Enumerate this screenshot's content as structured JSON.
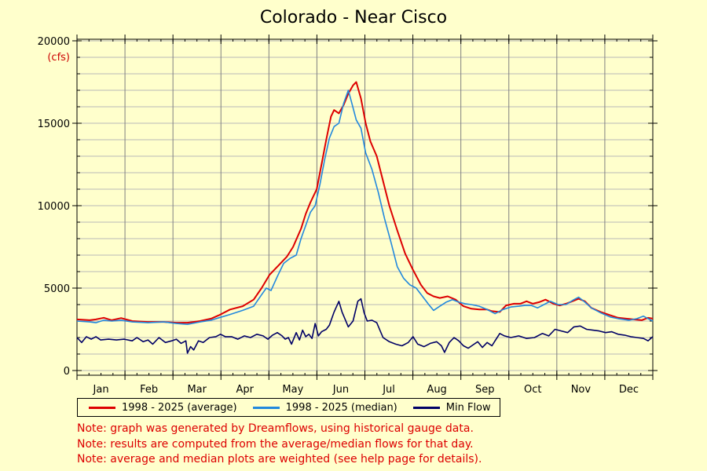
{
  "chart_data": {
    "type": "line",
    "title": "Colorado - Near Cisco",
    "ylabel_unit": "(cfs)",
    "ylim": [
      0,
      20000
    ],
    "yticks": [
      0,
      5000,
      10000,
      15000,
      20000
    ],
    "xlim": [
      0,
      365
    ],
    "months": [
      "Jan",
      "Feb",
      "Mar",
      "Apr",
      "May",
      "Jun",
      "Jul",
      "Aug",
      "Sep",
      "Oct",
      "Nov",
      "Dec"
    ],
    "grid": true,
    "legend_position": "bottom",
    "series": [
      {
        "name": "1998 - 2025 (average)",
        "color": "#dd0000",
        "points": [
          [
            0,
            3100
          ],
          [
            8,
            3050
          ],
          [
            12,
            3100
          ],
          [
            17,
            3200
          ],
          [
            22,
            3050
          ],
          [
            28,
            3180
          ],
          [
            35,
            3000
          ],
          [
            45,
            2950
          ],
          [
            55,
            2950
          ],
          [
            63,
            2900
          ],
          [
            70,
            2900
          ],
          [
            78,
            3000
          ],
          [
            85,
            3150
          ],
          [
            90,
            3350
          ],
          [
            97,
            3700
          ],
          [
            105,
            3900
          ],
          [
            112,
            4300
          ],
          [
            117,
            5000
          ],
          [
            122,
            5800
          ],
          [
            128,
            6400
          ],
          [
            133,
            6900
          ],
          [
            137,
            7500
          ],
          [
            142,
            8600
          ],
          [
            145,
            9500
          ],
          [
            148,
            10200
          ],
          [
            152,
            11000
          ],
          [
            155,
            12500
          ],
          [
            158,
            14000
          ],
          [
            161,
            15400
          ],
          [
            163,
            15800
          ],
          [
            166,
            15600
          ],
          [
            169,
            16100
          ],
          [
            172,
            16800
          ],
          [
            175,
            17300
          ],
          [
            177,
            17500
          ],
          [
            180,
            16500
          ],
          [
            183,
            15000
          ],
          [
            186,
            13900
          ],
          [
            190,
            13000
          ],
          [
            194,
            11500
          ],
          [
            198,
            10000
          ],
          [
            203,
            8500
          ],
          [
            208,
            7100
          ],
          [
            213,
            6100
          ],
          [
            218,
            5200
          ],
          [
            222,
            4700
          ],
          [
            226,
            4500
          ],
          [
            230,
            4400
          ],
          [
            235,
            4500
          ],
          [
            240,
            4300
          ],
          [
            245,
            3900
          ],
          [
            250,
            3750
          ],
          [
            255,
            3700
          ],
          [
            260,
            3700
          ],
          [
            263,
            3600
          ],
          [
            268,
            3550
          ],
          [
            272,
            3950
          ],
          [
            277,
            4050
          ],
          [
            281,
            4050
          ],
          [
            285,
            4200
          ],
          [
            289,
            4050
          ],
          [
            293,
            4150
          ],
          [
            297,
            4300
          ],
          [
            302,
            4050
          ],
          [
            306,
            3950
          ],
          [
            310,
            4050
          ],
          [
            314,
            4200
          ],
          [
            318,
            4350
          ],
          [
            322,
            4200
          ],
          [
            326,
            3800
          ],
          [
            332,
            3550
          ],
          [
            338,
            3350
          ],
          [
            343,
            3200
          ],
          [
            348,
            3150
          ],
          [
            353,
            3100
          ],
          [
            358,
            3050
          ],
          [
            362,
            3200
          ],
          [
            365,
            3150
          ]
        ]
      },
      {
        "name": "1998 - 2025 (median)",
        "color": "#2288dd",
        "points": [
          [
            0,
            3000
          ],
          [
            8,
            2950
          ],
          [
            12,
            2900
          ],
          [
            17,
            3050
          ],
          [
            22,
            3000
          ],
          [
            28,
            3050
          ],
          [
            35,
            2950
          ],
          [
            45,
            2900
          ],
          [
            55,
            2950
          ],
          [
            63,
            2850
          ],
          [
            70,
            2800
          ],
          [
            78,
            2950
          ],
          [
            85,
            3050
          ],
          [
            90,
            3200
          ],
          [
            97,
            3400
          ],
          [
            105,
            3650
          ],
          [
            112,
            3900
          ],
          [
            117,
            4600
          ],
          [
            120,
            5000
          ],
          [
            123,
            4850
          ],
          [
            127,
            5700
          ],
          [
            131,
            6500
          ],
          [
            135,
            6800
          ],
          [
            139,
            7000
          ],
          [
            142,
            8000
          ],
          [
            145,
            8800
          ],
          [
            148,
            9600
          ],
          [
            151,
            10000
          ],
          [
            154,
            11300
          ],
          [
            157,
            12800
          ],
          [
            160,
            14100
          ],
          [
            163,
            14800
          ],
          [
            166,
            15000
          ],
          [
            169,
            16200
          ],
          [
            172,
            17000
          ],
          [
            174,
            16300
          ],
          [
            177,
            15200
          ],
          [
            180,
            14700
          ],
          [
            183,
            13200
          ],
          [
            187,
            12200
          ],
          [
            191,
            10800
          ],
          [
            195,
            9200
          ],
          [
            199,
            7800
          ],
          [
            203,
            6300
          ],
          [
            207,
            5600
          ],
          [
            211,
            5200
          ],
          [
            215,
            5000
          ],
          [
            219,
            4500
          ],
          [
            223,
            4000
          ],
          [
            226,
            3650
          ],
          [
            230,
            3900
          ],
          [
            234,
            4150
          ],
          [
            238,
            4300
          ],
          [
            242,
            4150
          ],
          [
            246,
            4050
          ],
          [
            250,
            4000
          ],
          [
            255,
            3900
          ],
          [
            260,
            3700
          ],
          [
            265,
            3450
          ],
          [
            270,
            3700
          ],
          [
            275,
            3850
          ],
          [
            280,
            3900
          ],
          [
            284,
            3950
          ],
          [
            288,
            3950
          ],
          [
            292,
            3800
          ],
          [
            296,
            4000
          ],
          [
            300,
            4200
          ],
          [
            305,
            4000
          ],
          [
            310,
            4000
          ],
          [
            315,
            4300
          ],
          [
            318,
            4450
          ],
          [
            322,
            4150
          ],
          [
            326,
            3800
          ],
          [
            332,
            3500
          ],
          [
            338,
            3250
          ],
          [
            343,
            3150
          ],
          [
            350,
            3050
          ],
          [
            355,
            3150
          ],
          [
            359,
            3300
          ],
          [
            362,
            3150
          ],
          [
            365,
            3000
          ]
        ]
      },
      {
        "name": "Min Flow",
        "color": "#000066",
        "points": [
          [
            0,
            2000
          ],
          [
            3,
            1700
          ],
          [
            6,
            2050
          ],
          [
            9,
            1900
          ],
          [
            12,
            2050
          ],
          [
            15,
            1850
          ],
          [
            20,
            1900
          ],
          [
            25,
            1850
          ],
          [
            30,
            1900
          ],
          [
            35,
            1800
          ],
          [
            38,
            2000
          ],
          [
            42,
            1750
          ],
          [
            45,
            1850
          ],
          [
            48,
            1600
          ],
          [
            52,
            2000
          ],
          [
            56,
            1700
          ],
          [
            60,
            1800
          ],
          [
            63,
            1900
          ],
          [
            66,
            1650
          ],
          [
            69,
            1800
          ],
          [
            70,
            1050
          ],
          [
            72,
            1450
          ],
          [
            74,
            1250
          ],
          [
            77,
            1800
          ],
          [
            80,
            1700
          ],
          [
            84,
            2000
          ],
          [
            88,
            2050
          ],
          [
            91,
            2200
          ],
          [
            94,
            2050
          ],
          [
            98,
            2050
          ],
          [
            102,
            1900
          ],
          [
            106,
            2100
          ],
          [
            110,
            2000
          ],
          [
            114,
            2200
          ],
          [
            118,
            2100
          ],
          [
            121,
            1900
          ],
          [
            124,
            2150
          ],
          [
            127,
            2300
          ],
          [
            130,
            2100
          ],
          [
            132,
            1900
          ],
          [
            134,
            2000
          ],
          [
            136,
            1600
          ],
          [
            139,
            2300
          ],
          [
            141,
            1850
          ],
          [
            143,
            2450
          ],
          [
            145,
            2050
          ],
          [
            147,
            2200
          ],
          [
            149,
            1950
          ],
          [
            151,
            2850
          ],
          [
            153,
            2100
          ],
          [
            155,
            2350
          ],
          [
            158,
            2500
          ],
          [
            160,
            2750
          ],
          [
            163,
            3550
          ],
          [
            166,
            4200
          ],
          [
            168,
            3550
          ],
          [
            170,
            3100
          ],
          [
            172,
            2650
          ],
          [
            175,
            3000
          ],
          [
            178,
            4200
          ],
          [
            180,
            4350
          ],
          [
            182,
            3500
          ],
          [
            184,
            3000
          ],
          [
            187,
            3050
          ],
          [
            190,
            2900
          ],
          [
            194,
            2000
          ],
          [
            198,
            1750
          ],
          [
            202,
            1600
          ],
          [
            206,
            1500
          ],
          [
            210,
            1700
          ],
          [
            213,
            2050
          ],
          [
            216,
            1600
          ],
          [
            220,
            1450
          ],
          [
            224,
            1650
          ],
          [
            228,
            1750
          ],
          [
            231,
            1500
          ],
          [
            233,
            1100
          ],
          [
            236,
            1700
          ],
          [
            239,
            2000
          ],
          [
            242,
            1800
          ],
          [
            245,
            1500
          ],
          [
            248,
            1350
          ],
          [
            251,
            1550
          ],
          [
            254,
            1750
          ],
          [
            257,
            1400
          ],
          [
            260,
            1700
          ],
          [
            263,
            1500
          ],
          [
            265,
            1800
          ],
          [
            268,
            2250
          ],
          [
            271,
            2100
          ],
          [
            275,
            2000
          ],
          [
            280,
            2100
          ],
          [
            285,
            1950
          ],
          [
            290,
            2000
          ],
          [
            295,
            2250
          ],
          [
            299,
            2100
          ],
          [
            303,
            2500
          ],
          [
            307,
            2400
          ],
          [
            311,
            2300
          ],
          [
            315,
            2650
          ],
          [
            319,
            2700
          ],
          [
            323,
            2500
          ],
          [
            327,
            2450
          ],
          [
            331,
            2400
          ],
          [
            335,
            2300
          ],
          [
            339,
            2350
          ],
          [
            343,
            2200
          ],
          [
            347,
            2150
          ],
          [
            351,
            2050
          ],
          [
            355,
            2000
          ],
          [
            359,
            1950
          ],
          [
            362,
            1800
          ],
          [
            365,
            2050
          ]
        ]
      }
    ]
  },
  "notes": [
    "Note: graph was generated by Dreamflows, using historical gauge data.",
    "Note: results are computed from the average/median flows for that day.",
    "Note: average and median plots are weighted (see help page for details)."
  ]
}
